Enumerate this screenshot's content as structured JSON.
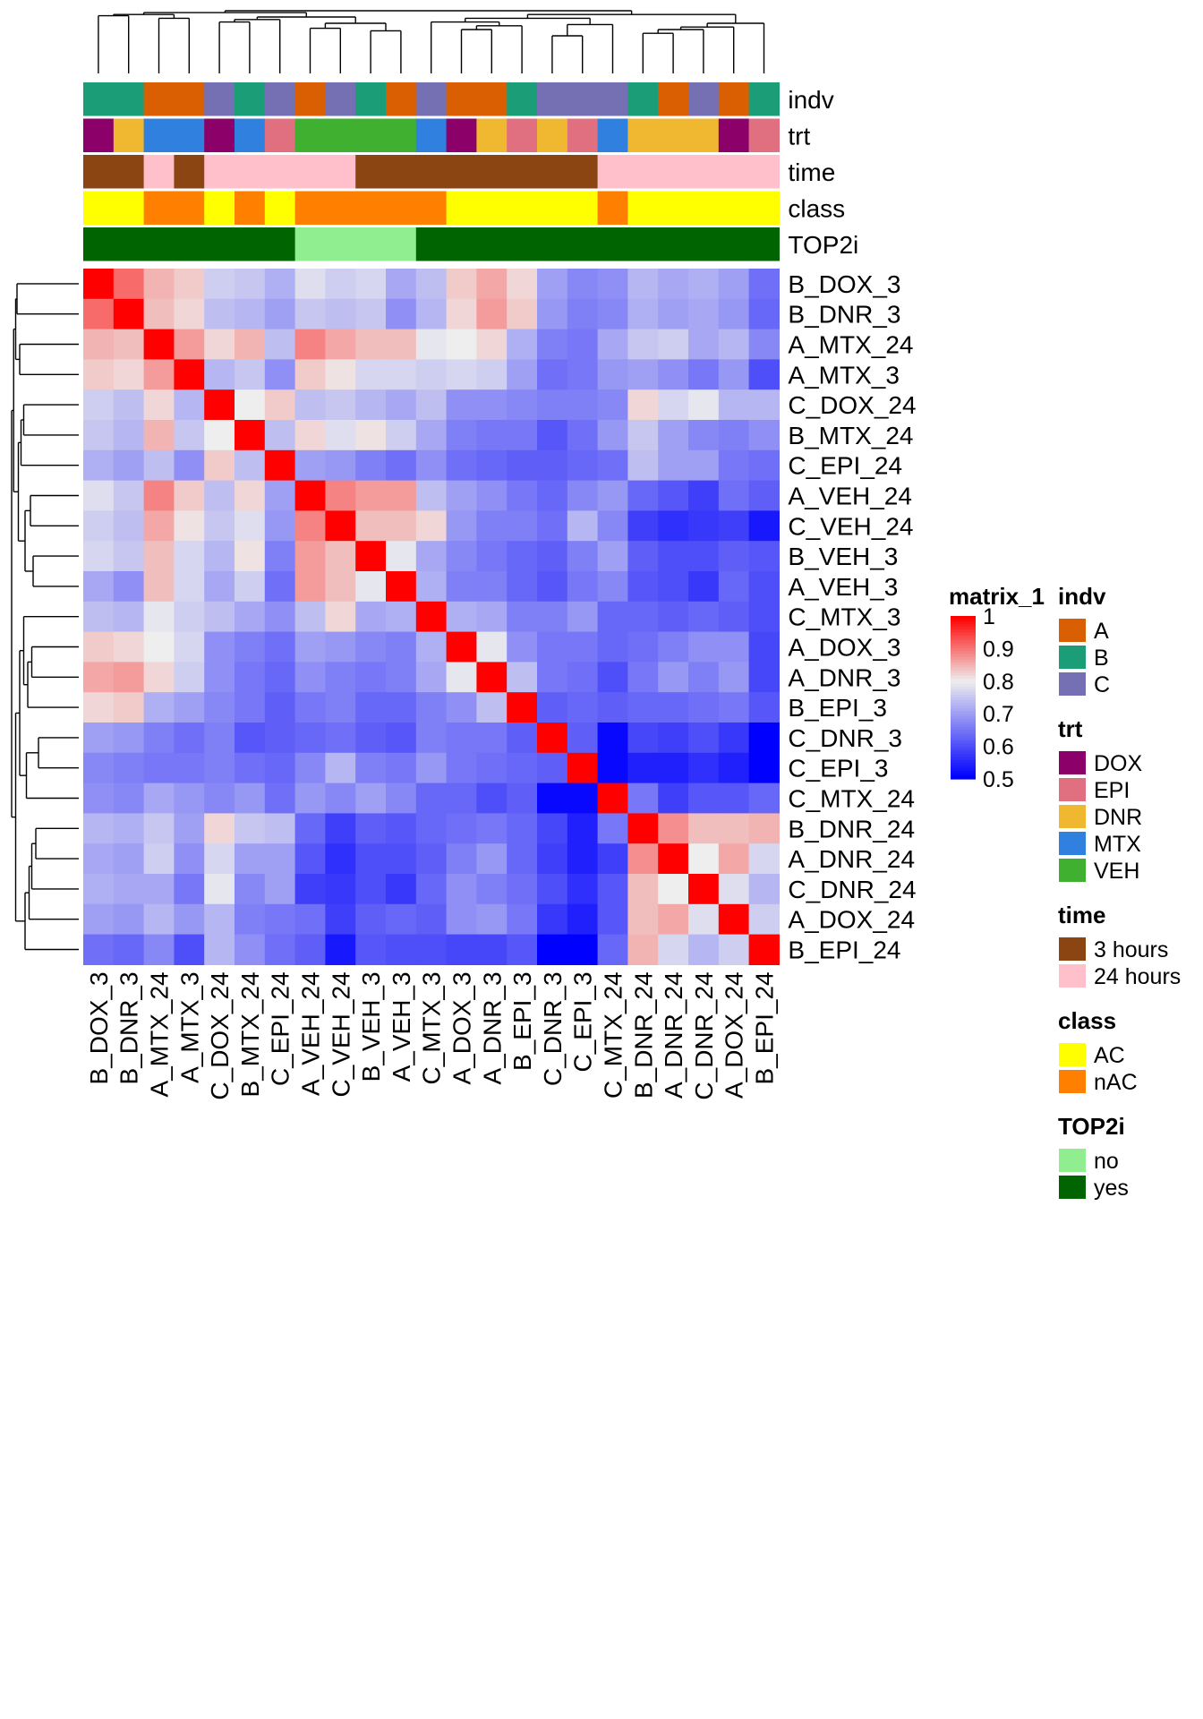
{
  "chart_data": {
    "type": "heatmap",
    "labels": [
      "B_DOX_3",
      "B_DNR_3",
      "A_MTX_24",
      "A_MTX_3",
      "C_DOX_24",
      "B_MTX_24",
      "C_EPI_24",
      "A_VEH_24",
      "C_VEH_24",
      "B_VEH_3",
      "A_VEH_3",
      "C_MTX_3",
      "A_DOX_3",
      "A_DNR_3",
      "B_EPI_3",
      "C_DNR_3",
      "C_EPI_3",
      "C_MTX_24",
      "B_DNR_24",
      "A_DNR_24",
      "C_DNR_24",
      "A_DOX_24",
      "B_EPI_24"
    ],
    "matrix": [
      [
        1.0,
        0.91,
        0.85,
        0.83,
        0.76,
        0.75,
        0.72,
        0.78,
        0.76,
        0.77,
        0.71,
        0.74,
        0.83,
        0.86,
        0.82,
        0.7,
        0.67,
        0.68,
        0.73,
        0.71,
        0.72,
        0.7,
        0.64
      ],
      [
        0.91,
        1.0,
        0.84,
        0.82,
        0.74,
        0.73,
        0.7,
        0.75,
        0.74,
        0.75,
        0.68,
        0.73,
        0.82,
        0.87,
        0.83,
        0.69,
        0.66,
        0.67,
        0.72,
        0.7,
        0.71,
        0.69,
        0.63
      ],
      [
        0.85,
        0.84,
        1.0,
        0.87,
        0.82,
        0.85,
        0.74,
        0.89,
        0.86,
        0.84,
        0.84,
        0.79,
        0.8,
        0.82,
        0.72,
        0.66,
        0.65,
        0.71,
        0.75,
        0.76,
        0.71,
        0.73,
        0.67
      ],
      [
        0.83,
        0.82,
        0.87,
        1.0,
        0.73,
        0.75,
        0.68,
        0.83,
        0.81,
        0.77,
        0.77,
        0.76,
        0.77,
        0.76,
        0.7,
        0.64,
        0.65,
        0.69,
        0.7,
        0.68,
        0.65,
        0.69,
        0.6
      ],
      [
        0.76,
        0.74,
        0.82,
        0.73,
        1.0,
        0.8,
        0.83,
        0.74,
        0.75,
        0.73,
        0.71,
        0.74,
        0.68,
        0.68,
        0.67,
        0.66,
        0.66,
        0.67,
        0.82,
        0.77,
        0.79,
        0.73,
        0.73
      ],
      [
        0.75,
        0.73,
        0.85,
        0.75,
        0.8,
        1.0,
        0.74,
        0.82,
        0.78,
        0.81,
        0.76,
        0.71,
        0.66,
        0.65,
        0.65,
        0.61,
        0.64,
        0.69,
        0.75,
        0.7,
        0.67,
        0.66,
        0.68
      ],
      [
        0.72,
        0.7,
        0.74,
        0.68,
        0.83,
        0.74,
        1.0,
        0.7,
        0.69,
        0.66,
        0.64,
        0.68,
        0.64,
        0.63,
        0.62,
        0.62,
        0.63,
        0.64,
        0.74,
        0.7,
        0.7,
        0.65,
        0.64
      ],
      [
        0.78,
        0.75,
        0.89,
        0.83,
        0.74,
        0.82,
        0.7,
        1.0,
        0.89,
        0.87,
        0.87,
        0.74,
        0.7,
        0.68,
        0.65,
        0.63,
        0.67,
        0.69,
        0.63,
        0.61,
        0.58,
        0.64,
        0.62
      ],
      [
        0.76,
        0.74,
        0.86,
        0.81,
        0.75,
        0.78,
        0.69,
        0.89,
        1.0,
        0.84,
        0.84,
        0.82,
        0.69,
        0.66,
        0.66,
        0.64,
        0.73,
        0.67,
        0.58,
        0.56,
        0.57,
        0.58,
        0.53
      ],
      [
        0.77,
        0.75,
        0.84,
        0.77,
        0.73,
        0.81,
        0.66,
        0.87,
        0.84,
        1.0,
        0.79,
        0.71,
        0.67,
        0.65,
        0.63,
        0.62,
        0.66,
        0.7,
        0.62,
        0.6,
        0.6,
        0.62,
        0.61
      ],
      [
        0.71,
        0.68,
        0.84,
        0.77,
        0.71,
        0.76,
        0.64,
        0.87,
        0.84,
        0.79,
        1.0,
        0.72,
        0.66,
        0.66,
        0.63,
        0.61,
        0.65,
        0.67,
        0.61,
        0.6,
        0.57,
        0.63,
        0.6
      ],
      [
        0.74,
        0.73,
        0.79,
        0.76,
        0.74,
        0.71,
        0.68,
        0.74,
        0.82,
        0.71,
        0.72,
        1.0,
        0.72,
        0.71,
        0.66,
        0.66,
        0.69,
        0.63,
        0.63,
        0.62,
        0.63,
        0.62,
        0.6
      ],
      [
        0.83,
        0.82,
        0.8,
        0.77,
        0.68,
        0.66,
        0.64,
        0.7,
        0.69,
        0.67,
        0.66,
        0.72,
        1.0,
        0.79,
        0.68,
        0.65,
        0.65,
        0.63,
        0.64,
        0.66,
        0.68,
        0.68,
        0.59
      ],
      [
        0.86,
        0.87,
        0.82,
        0.76,
        0.68,
        0.65,
        0.63,
        0.68,
        0.66,
        0.65,
        0.66,
        0.71,
        0.79,
        1.0,
        0.74,
        0.65,
        0.64,
        0.6,
        0.65,
        0.69,
        0.66,
        0.69,
        0.59
      ],
      [
        0.82,
        0.83,
        0.72,
        0.7,
        0.67,
        0.65,
        0.62,
        0.65,
        0.66,
        0.63,
        0.63,
        0.66,
        0.68,
        0.74,
        1.0,
        0.62,
        0.63,
        0.62,
        0.63,
        0.63,
        0.64,
        0.65,
        0.61
      ],
      [
        0.7,
        0.69,
        0.66,
        0.64,
        0.66,
        0.61,
        0.62,
        0.63,
        0.64,
        0.62,
        0.61,
        0.66,
        0.65,
        0.65,
        0.62,
        1.0,
        0.62,
        0.51,
        0.59,
        0.58,
        0.6,
        0.57,
        0.5
      ],
      [
        0.67,
        0.66,
        0.65,
        0.65,
        0.66,
        0.64,
        0.63,
        0.67,
        0.73,
        0.66,
        0.65,
        0.69,
        0.65,
        0.64,
        0.63,
        0.62,
        1.0,
        0.51,
        0.54,
        0.54,
        0.56,
        0.54,
        0.5
      ],
      [
        0.68,
        0.67,
        0.71,
        0.69,
        0.67,
        0.69,
        0.64,
        0.69,
        0.67,
        0.7,
        0.67,
        0.63,
        0.63,
        0.6,
        0.62,
        0.51,
        0.51,
        1.0,
        0.65,
        0.58,
        0.61,
        0.61,
        0.63
      ],
      [
        0.73,
        0.72,
        0.75,
        0.7,
        0.82,
        0.75,
        0.74,
        0.63,
        0.58,
        0.62,
        0.61,
        0.63,
        0.64,
        0.65,
        0.63,
        0.59,
        0.54,
        0.65,
        1.0,
        0.88,
        0.84,
        0.84,
        0.85
      ],
      [
        0.71,
        0.7,
        0.76,
        0.68,
        0.77,
        0.7,
        0.7,
        0.61,
        0.56,
        0.6,
        0.6,
        0.62,
        0.66,
        0.69,
        0.63,
        0.58,
        0.54,
        0.58,
        0.88,
        1.0,
        0.8,
        0.86,
        0.77
      ],
      [
        0.72,
        0.71,
        0.71,
        0.65,
        0.79,
        0.67,
        0.7,
        0.58,
        0.57,
        0.6,
        0.57,
        0.63,
        0.68,
        0.66,
        0.64,
        0.6,
        0.56,
        0.61,
        0.84,
        0.8,
        1.0,
        0.78,
        0.73
      ],
      [
        0.7,
        0.69,
        0.73,
        0.69,
        0.73,
        0.66,
        0.65,
        0.64,
        0.58,
        0.62,
        0.63,
        0.62,
        0.68,
        0.69,
        0.65,
        0.57,
        0.54,
        0.61,
        0.84,
        0.86,
        0.78,
        1.0,
        0.76
      ],
      [
        0.64,
        0.63,
        0.67,
        0.6,
        0.73,
        0.68,
        0.64,
        0.62,
        0.53,
        0.61,
        0.6,
        0.6,
        0.59,
        0.59,
        0.61,
        0.5,
        0.5,
        0.63,
        0.85,
        0.77,
        0.73,
        0.76,
        1.0
      ]
    ],
    "annotations": {
      "indv": [
        "B",
        "B",
        "A",
        "A",
        "C",
        "B",
        "C",
        "A",
        "C",
        "B",
        "A",
        "C",
        "A",
        "A",
        "B",
        "C",
        "C",
        "C",
        "B",
        "A",
        "C",
        "A",
        "B"
      ],
      "trt": [
        "DOX",
        "DNR",
        "MTX",
        "MTX",
        "DOX",
        "MTX",
        "EPI",
        "VEH",
        "VEH",
        "VEH",
        "VEH",
        "MTX",
        "DOX",
        "DNR",
        "EPI",
        "DNR",
        "EPI",
        "MTX",
        "DNR",
        "DNR",
        "DNR",
        "DOX",
        "EPI"
      ],
      "time": [
        "3 hours",
        "3 hours",
        "24 hours",
        "3 hours",
        "24 hours",
        "24 hours",
        "24 hours",
        "24 hours",
        "24 hours",
        "3 hours",
        "3 hours",
        "3 hours",
        "3 hours",
        "3 hours",
        "3 hours",
        "3 hours",
        "3 hours",
        "24 hours",
        "24 hours",
        "24 hours",
        "24 hours",
        "24 hours",
        "24 hours"
      ],
      "class": [
        "AC",
        "AC",
        "nAC",
        "nAC",
        "AC",
        "nAC",
        "AC",
        "nAC",
        "nAC",
        "nAC",
        "nAC",
        "nAC",
        "AC",
        "AC",
        "AC",
        "AC",
        "AC",
        "nAC",
        "AC",
        "AC",
        "AC",
        "AC",
        "AC"
      ],
      "TOP2i": [
        "yes",
        "yes",
        "yes",
        "yes",
        "yes",
        "yes",
        "yes",
        "no",
        "no",
        "no",
        "no",
        "yes",
        "yes",
        "yes",
        "yes",
        "yes",
        "yes",
        "yes",
        "yes",
        "yes",
        "yes",
        "yes",
        "yes"
      ]
    },
    "annotation_tracks": [
      "indv",
      "trt",
      "time",
      "class",
      "TOP2i"
    ],
    "color_scale": {
      "title": "matrix_1",
      "min": 0.5,
      "mid": 0.8,
      "max": 1.0,
      "low": "#0000FF",
      "midcolor": "#EEEEEE",
      "high": "#FF0000",
      "ticks": [
        "1",
        "0.9",
        "0.8",
        "0.7",
        "0.6",
        "0.5"
      ]
    },
    "legends": [
      {
        "title": "indv",
        "items": [
          {
            "label": "A",
            "color": "#D95F02"
          },
          {
            "label": "B",
            "color": "#1B9E77"
          },
          {
            "label": "C",
            "color": "#7570B3"
          }
        ]
      },
      {
        "title": "trt",
        "items": [
          {
            "label": "DOX",
            "color": "#8B0069"
          },
          {
            "label": "EPI",
            "color": "#E07080"
          },
          {
            "label": "DNR",
            "color": "#F0B830"
          },
          {
            "label": "MTX",
            "color": "#3080E0"
          },
          {
            "label": "VEH",
            "color": "#40B030"
          }
        ]
      },
      {
        "title": "time",
        "items": [
          {
            "label": "3 hours",
            "color": "#8B4513"
          },
          {
            "label": "24 hours",
            "color": "#FFC0CB"
          }
        ]
      },
      {
        "title": "class",
        "items": [
          {
            "label": "AC",
            "color": "#FFFF00"
          },
          {
            "label": "nAC",
            "color": "#FF8000"
          }
        ]
      },
      {
        "title": "TOP2i",
        "items": [
          {
            "label": "no",
            "color": "#90EE90"
          },
          {
            "label": "yes",
            "color": "#006400"
          }
        ]
      }
    ]
  }
}
